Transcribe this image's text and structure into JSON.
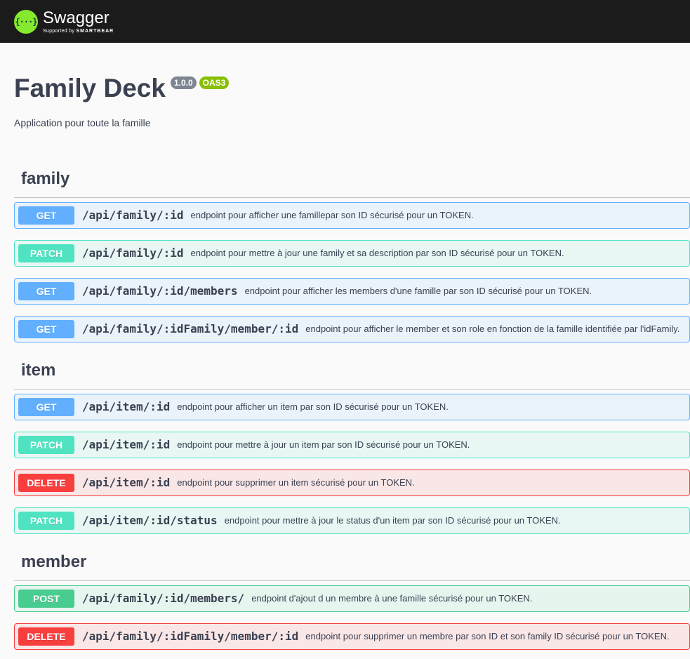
{
  "topbar": {
    "logo_glyph": "{···}",
    "logo_name": "Swagger",
    "logo_sub_prefix": "Supported by",
    "logo_sub_brand": "SMARTBEAR"
  },
  "info": {
    "title": "Family Deck",
    "version": "1.0.0",
    "oas": "OAS3",
    "description": "Application pour toute la famille"
  },
  "colors": {
    "get": "#61affe",
    "patch": "#50e3c2",
    "delete": "#f93e3e",
    "post": "#49cc90"
  },
  "tags": [
    {
      "name": "family",
      "operations": [
        {
          "method": "GET",
          "path": "/api/family/:id",
          "summary": "endpoint pour afficher une famillepar son ID sécurisé pour un TOKEN."
        },
        {
          "method": "PATCH",
          "path": "/api/family/:id",
          "summary": "endpoint pour mettre à jour une family et sa description par son ID sécurisé pour un TOKEN."
        },
        {
          "method": "GET",
          "path": "/api/family/:id/members",
          "summary": "endpoint pour afficher les members d'une famille par son ID sécurisé pour un TOKEN."
        },
        {
          "method": "GET",
          "path": "/api/family/:idFamily/member/:id",
          "summary": "endpoint pour afficher le member et son role en fonction de la famille identifiée par l'idFamily."
        }
      ]
    },
    {
      "name": "item",
      "operations": [
        {
          "method": "GET",
          "path": "/api/item/:id",
          "summary": "endpoint pour afficher un item par son ID sécurisé pour un TOKEN."
        },
        {
          "method": "PATCH",
          "path": "/api/item/:id",
          "summary": "endpoint pour mettre à jour un item par son ID sécurisé pour un TOKEN."
        },
        {
          "method": "DELETE",
          "path": "/api/item/:id",
          "summary": "endpoint pour supprimer un item sécurisé pour un TOKEN."
        },
        {
          "method": "PATCH",
          "path": "/api/item/:id/status",
          "summary": "endpoint pour mettre à jour le status d'un item par son ID sécurisé pour un TOKEN."
        }
      ]
    },
    {
      "name": "member",
      "operations": [
        {
          "method": "POST",
          "path": "/api/family/:id/members/",
          "summary": "endpoint d'ajout d un membre à une famille sécurisé pour un TOKEN."
        },
        {
          "method": "DELETE",
          "path": "/api/family/:idFamily/member/:id",
          "summary": "endpoint pour supprimer un membre par son ID et son family ID sécurisé pour un TOKEN."
        }
      ]
    }
  ]
}
